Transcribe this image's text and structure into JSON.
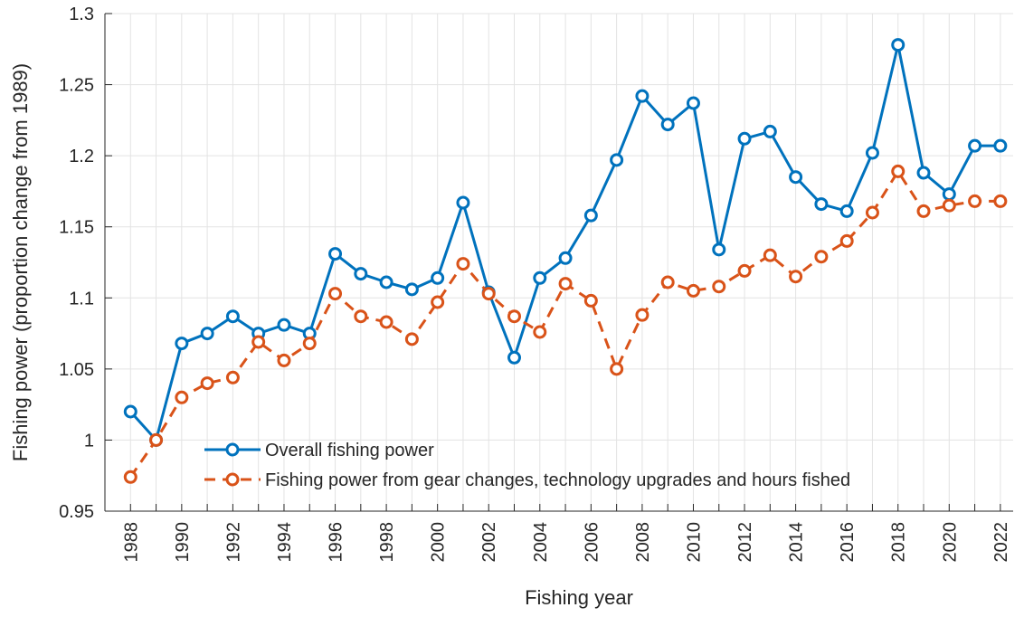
{
  "chart_data": {
    "type": "line",
    "x_label": "Fishing year",
    "y_label": "Fishing power (proportion change from 1989)",
    "x": [
      1988,
      1989,
      1990,
      1991,
      1992,
      1993,
      1994,
      1995,
      1996,
      1997,
      1998,
      1999,
      2000,
      2001,
      2002,
      2003,
      2004,
      2005,
      2006,
      2007,
      2008,
      2009,
      2010,
      2011,
      2012,
      2013,
      2014,
      2015,
      2016,
      2017,
      2018,
      2019,
      2020,
      2021,
      2022
    ],
    "series": [
      {
        "name": "Overall fishing power",
        "color": "#0072bd",
        "dashed": false,
        "values": [
          1.02,
          1.0,
          1.068,
          1.075,
          1.087,
          1.075,
          1.081,
          1.075,
          1.131,
          1.117,
          1.111,
          1.106,
          1.114,
          1.167,
          1.104,
          1.058,
          1.114,
          1.128,
          1.158,
          1.197,
          1.242,
          1.222,
          1.237,
          1.134,
          1.212,
          1.217,
          1.185,
          1.166,
          1.161,
          1.202,
          1.278,
          1.188,
          1.173,
          1.207,
          1.207
        ]
      },
      {
        "name": "Fishing power from gear changes, technology upgrades and hours fished",
        "color": "#d95319",
        "dashed": true,
        "values": [
          0.974,
          1.0,
          1.03,
          1.04,
          1.044,
          1.069,
          1.056,
          1.068,
          1.103,
          1.087,
          1.083,
          1.071,
          1.097,
          1.124,
          1.103,
          1.087,
          1.076,
          1.11,
          1.098,
          1.05,
          1.088,
          1.111,
          1.105,
          1.108,
          1.119,
          1.13,
          1.115,
          1.129,
          1.14,
          1.16,
          1.189,
          1.161,
          1.165,
          1.168,
          1.168
        ]
      }
    ],
    "xlim": [
      1987,
      2022.5
    ],
    "xticks": [
      1988,
      1990,
      1992,
      1994,
      1996,
      1998,
      2000,
      2002,
      2004,
      2006,
      2008,
      2010,
      2012,
      2014,
      2016,
      2018,
      2020,
      2022
    ],
    "minor_xticks": [
      1989,
      1991,
      1993,
      1995,
      1997,
      1999,
      2001,
      2003,
      2005,
      2007,
      2009,
      2011,
      2013,
      2015,
      2017,
      2019,
      2021
    ],
    "ylim": [
      0.95,
      1.3
    ],
    "yticks": [
      0.95,
      1,
      1.05,
      1.1,
      1.15,
      1.2,
      1.25,
      1.3
    ],
    "grid": true,
    "legend": "lower left"
  }
}
